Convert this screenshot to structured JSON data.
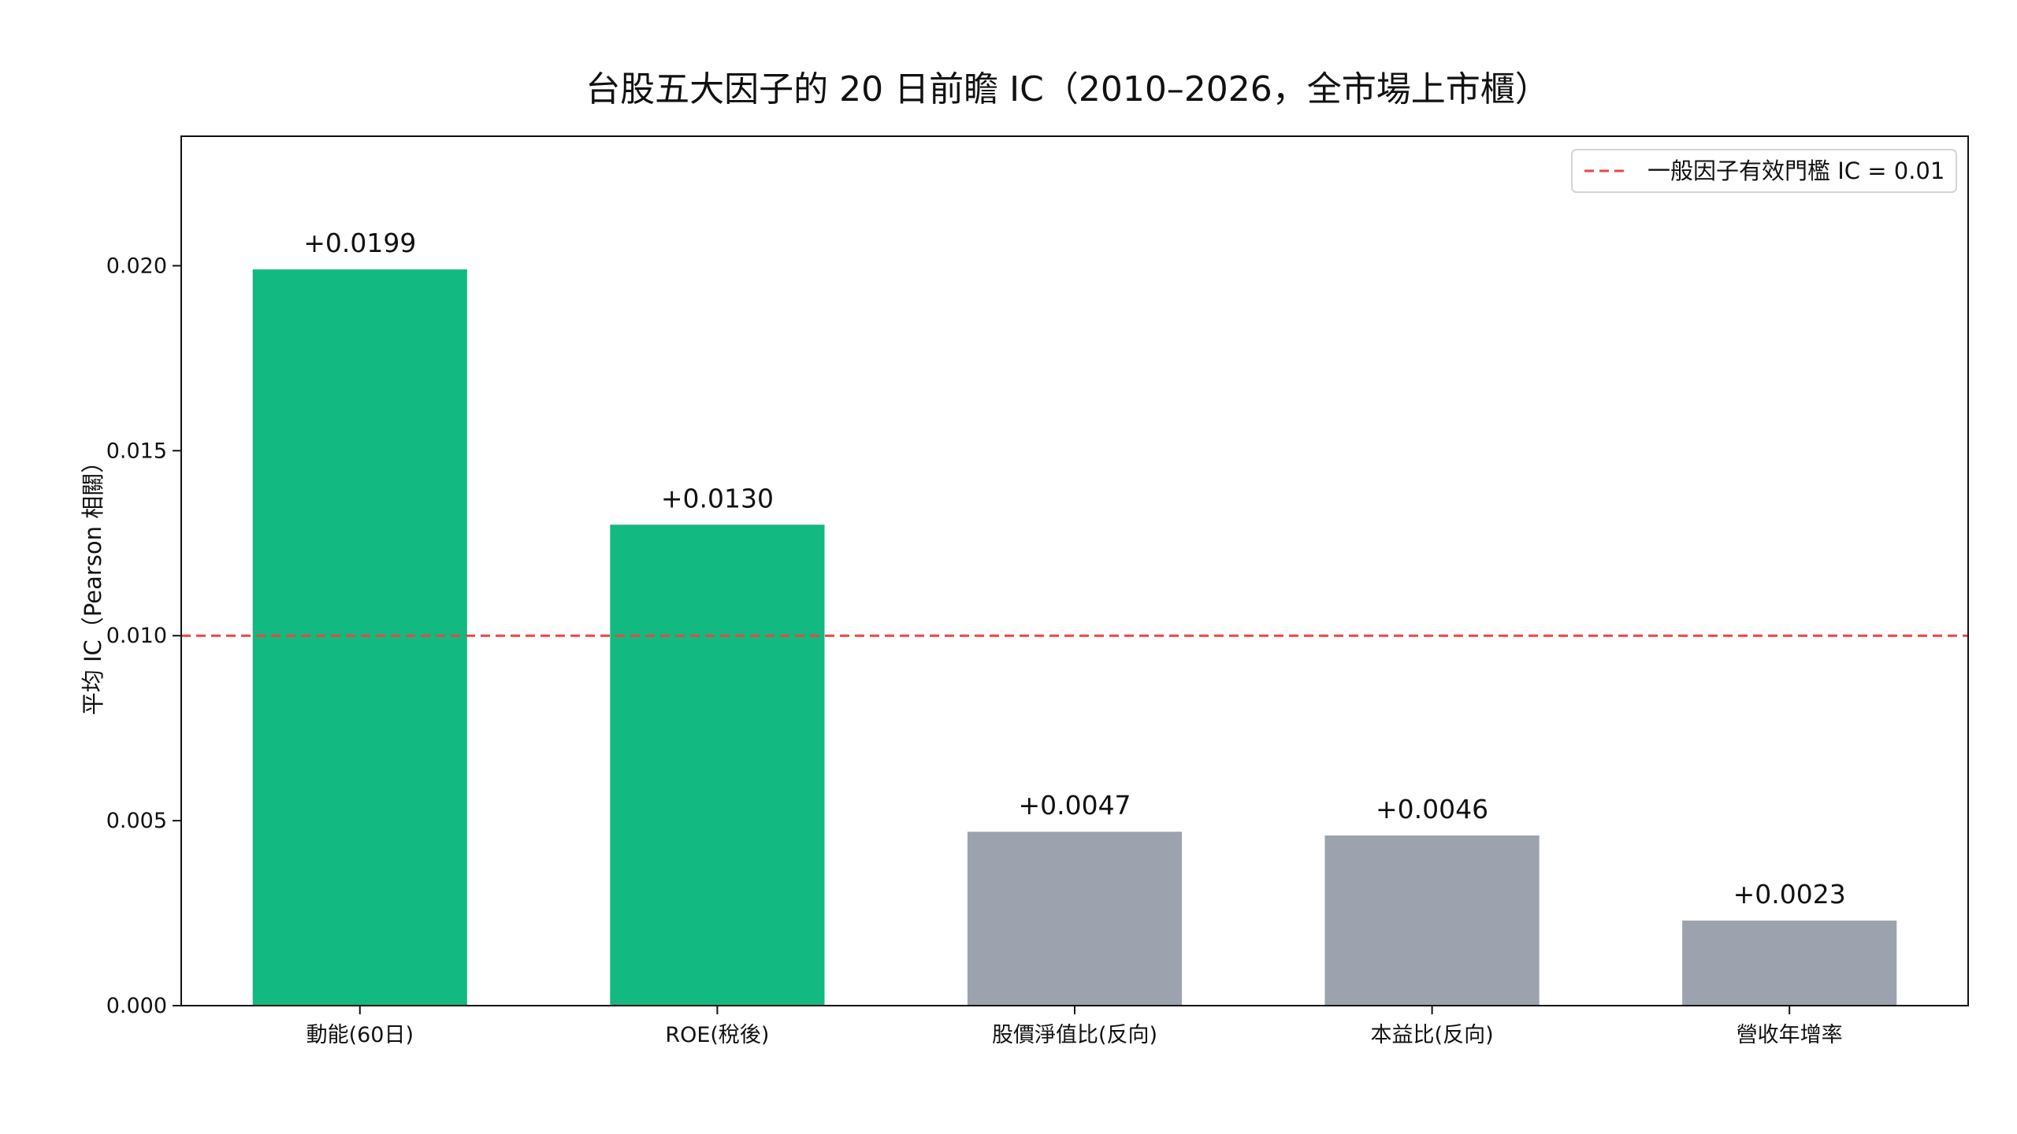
{
  "chart_data": {
    "type": "bar",
    "title": "台股五大因子的 20 日前瞻 IC（2010–2026，全市場上市櫃）",
    "xlabel": "",
    "ylabel": "平均 IC（Pearson 相關）",
    "categories": [
      "動能(60日)",
      "ROE(稅後)",
      "股價淨值比(反向)",
      "本益比(反向)",
      "營收年增率"
    ],
    "values": [
      0.0199,
      0.013,
      0.0047,
      0.0046,
      0.0023
    ],
    "value_labels": [
      "+0.0199",
      "+0.0130",
      "+0.0047",
      "+0.0046",
      "+0.0023"
    ],
    "bar_colors": [
      "#12b981",
      "#12b981",
      "#9ca3af",
      "#9ca3af",
      "#9ca3af"
    ],
    "ylim": [
      0,
      0.0235
    ],
    "yticks": [
      0.0,
      0.005,
      0.01,
      0.015,
      0.02
    ],
    "ytick_labels": [
      "0.000",
      "0.005",
      "0.010",
      "0.015",
      "0.020"
    ],
    "grid": false,
    "reference_line": {
      "value": 0.01,
      "label": "一般因子有效門檻 IC = 0.01",
      "color": "#ef4444",
      "style": "dashed"
    },
    "legend_position": "top-right"
  }
}
